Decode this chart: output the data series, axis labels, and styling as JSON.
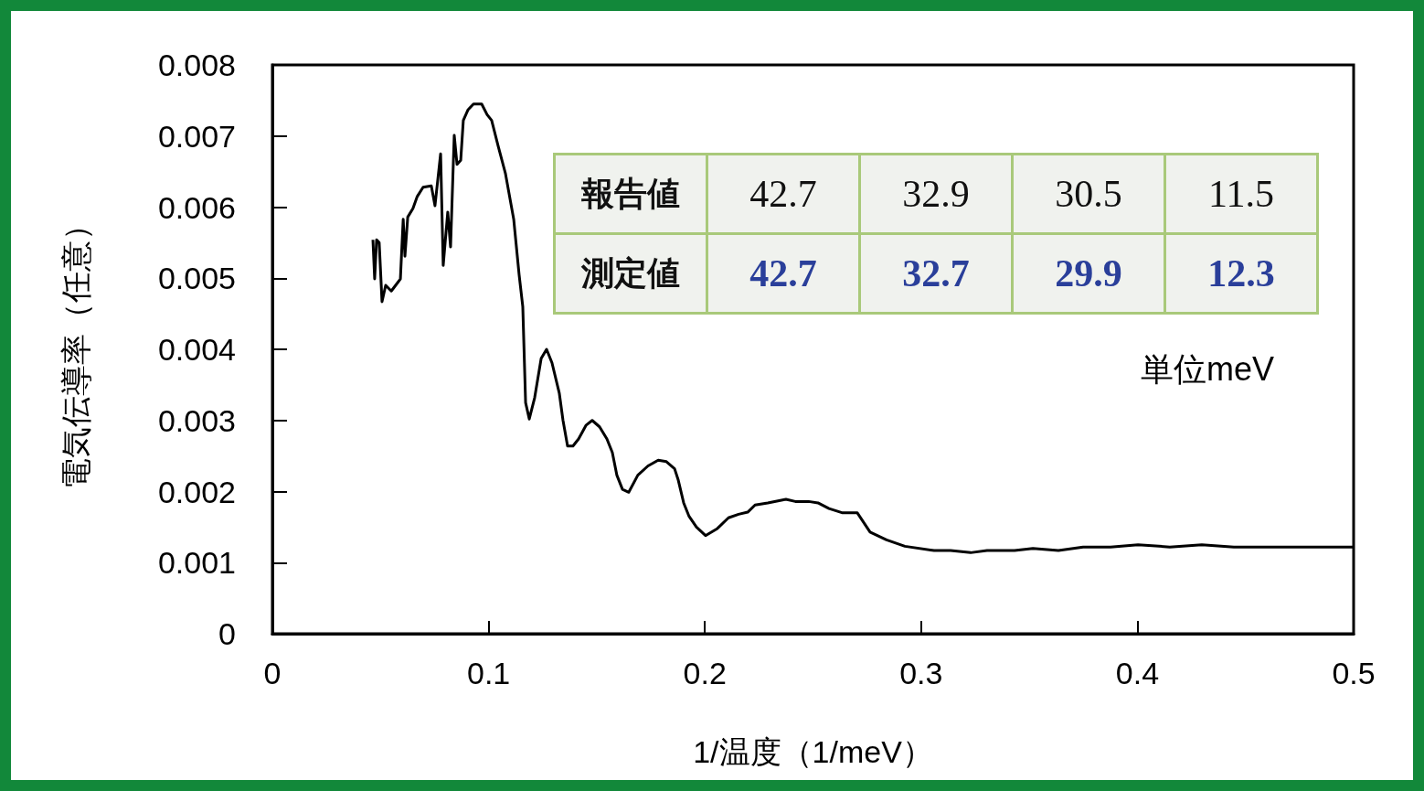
{
  "chart_data": {
    "type": "line",
    "xlabel": "1/温度（1/meV）",
    "ylabel": "電気伝導率（任意）",
    "xlim": [
      0,
      0.5
    ],
    "xticks": [
      0,
      0.1,
      0.2,
      0.3,
      0.4,
      0.5
    ],
    "ylim": [
      0,
      0.008
    ],
    "yticks": [
      0,
      0.001,
      0.002,
      0.003,
      0.004,
      0.005,
      0.006,
      0.007,
      0.008
    ],
    "grid": false,
    "annotations": [
      "報告値",
      "42.7",
      "32.9",
      "30.5",
      "11.5",
      "測定値",
      "42.7",
      "32.7",
      "29.9",
      "12.3",
      "単位meV"
    ],
    "series": [
      {
        "color": "#000000",
        "x": [
          0.0465,
          0.0473,
          0.0482,
          0.0494,
          0.0507,
          0.0524,
          0.055,
          0.057,
          0.0592,
          0.0605,
          0.0613,
          0.0626,
          0.065,
          0.067,
          0.0697,
          0.0735,
          0.0752,
          0.0778,
          0.079,
          0.0811,
          0.0824,
          0.0841,
          0.0854,
          0.0871,
          0.0883,
          0.0905,
          0.093,
          0.0968,
          0.0993,
          0.1014,
          0.1044,
          0.1078,
          0.1116,
          0.1141,
          0.1158,
          0.1171,
          0.1188,
          0.1213,
          0.1243,
          0.1268,
          0.1293,
          0.1327,
          0.1344,
          0.1365,
          0.139,
          0.1416,
          0.145,
          0.1479,
          0.1513,
          0.1547,
          0.1572,
          0.1593,
          0.1619,
          0.1648,
          0.169,
          0.1737,
          0.1784,
          0.1822,
          0.186,
          0.1877,
          0.1902,
          0.1927,
          0.1961,
          0.2003,
          0.2058,
          0.2109,
          0.2156,
          0.2198,
          0.2232,
          0.2291,
          0.2375,
          0.2418,
          0.248,
          0.2523,
          0.2574,
          0.2637,
          0.2705,
          0.2764,
          0.284,
          0.2925,
          0.306,
          0.3136,
          0.3229,
          0.3305,
          0.3432,
          0.3517,
          0.3635,
          0.3749,
          0.3876,
          0.4003,
          0.415,
          0.4298,
          0.4446,
          0.4658,
          0.5
        ],
        "values": [
          0.00554,
          0.00499,
          0.00554,
          0.0055,
          0.00467,
          0.0049,
          0.00482,
          0.0049,
          0.00499,
          0.00583,
          0.00531,
          0.00586,
          0.00598,
          0.00615,
          0.00628,
          0.0063,
          0.00602,
          0.00675,
          0.00518,
          0.00593,
          0.00544,
          0.00701,
          0.0066,
          0.00666,
          0.00722,
          0.00737,
          0.00745,
          0.00745,
          0.0073,
          0.00722,
          0.00686,
          0.00647,
          0.00583,
          0.00505,
          0.0046,
          0.00325,
          0.00302,
          0.00332,
          0.00387,
          0.004,
          0.00381,
          0.00338,
          0.003,
          0.00264,
          0.00264,
          0.00274,
          0.00293,
          0.003,
          0.00291,
          0.00274,
          0.00255,
          0.00223,
          0.00203,
          0.00199,
          0.00223,
          0.00236,
          0.00244,
          0.00242,
          0.00232,
          0.00216,
          0.00184,
          0.00165,
          0.0015,
          0.00138,
          0.00148,
          0.00163,
          0.00168,
          0.00171,
          0.00181,
          0.00184,
          0.00189,
          0.00186,
          0.00186,
          0.00184,
          0.00176,
          0.0017,
          0.0017,
          0.00143,
          0.00132,
          0.00123,
          0.00117,
          0.00117,
          0.00114,
          0.00117,
          0.00117,
          0.0012,
          0.00117,
          0.00122,
          0.00122,
          0.00125,
          0.00122,
          0.00125,
          0.00122,
          0.00122,
          0.00122
        ]
      }
    ]
  }
}
